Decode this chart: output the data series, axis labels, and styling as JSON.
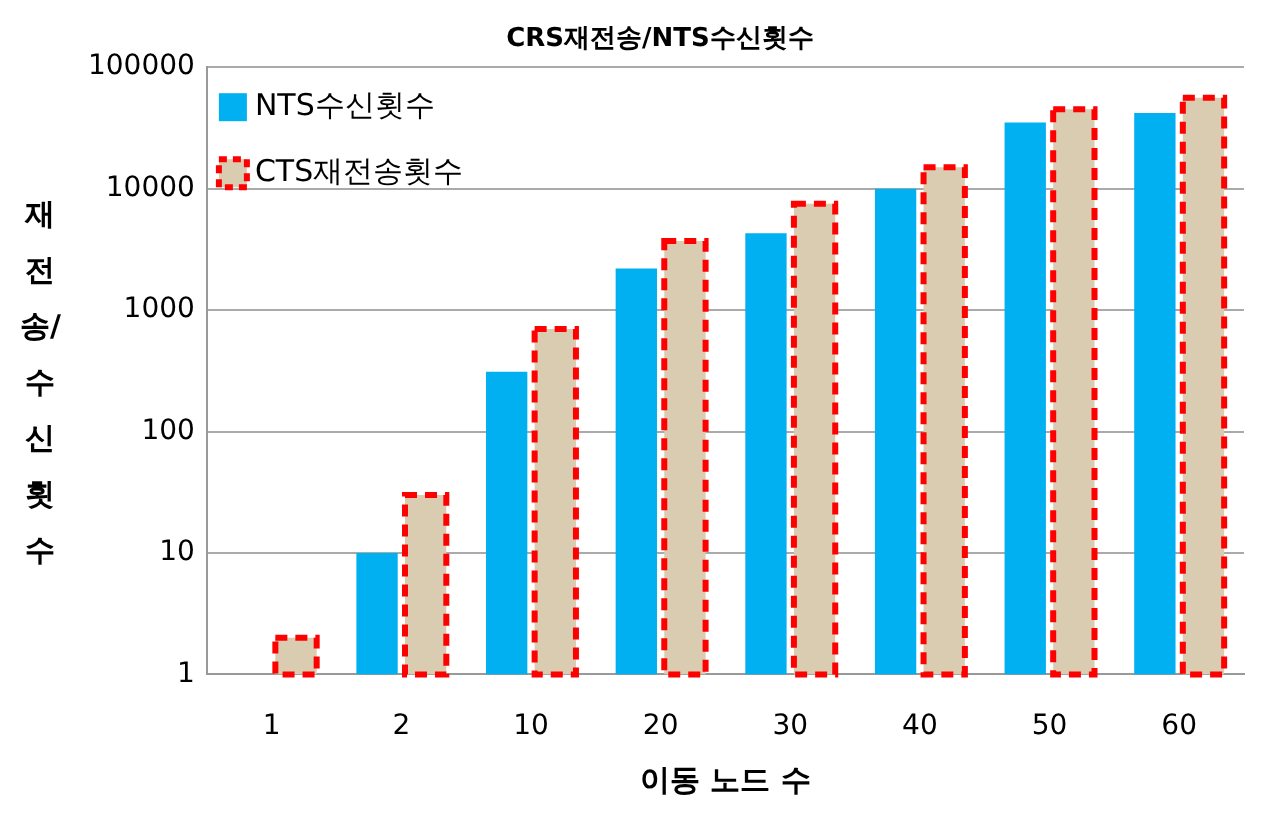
{
  "chart_data": {
    "type": "bar",
    "title": "CRS재전송/NTS수신횟수",
    "xlabel": "이동 노드 수",
    "ylabel": "재전송/수신횟수",
    "categories": [
      "1",
      "2",
      "10",
      "20",
      "30",
      "40",
      "50",
      "60"
    ],
    "series": [
      {
        "name": "NTS수신횟수",
        "color": "#00b0f0",
        "values": [
          null,
          10,
          310,
          2200,
          4300,
          10000,
          35000,
          42000
        ]
      },
      {
        "name": "CTS재전송횟수",
        "color": "#d9ccb0",
        "line_style": "dashed",
        "values": [
          2,
          30,
          700,
          3700,
          7500,
          15000,
          45000,
          56000
        ]
      }
    ],
    "log": true,
    "ylim": [
      1,
      100000
    ],
    "yticks": [
      1,
      10,
      100,
      1000,
      10000,
      100000
    ],
    "grid": "y",
    "legend": "top left"
  }
}
